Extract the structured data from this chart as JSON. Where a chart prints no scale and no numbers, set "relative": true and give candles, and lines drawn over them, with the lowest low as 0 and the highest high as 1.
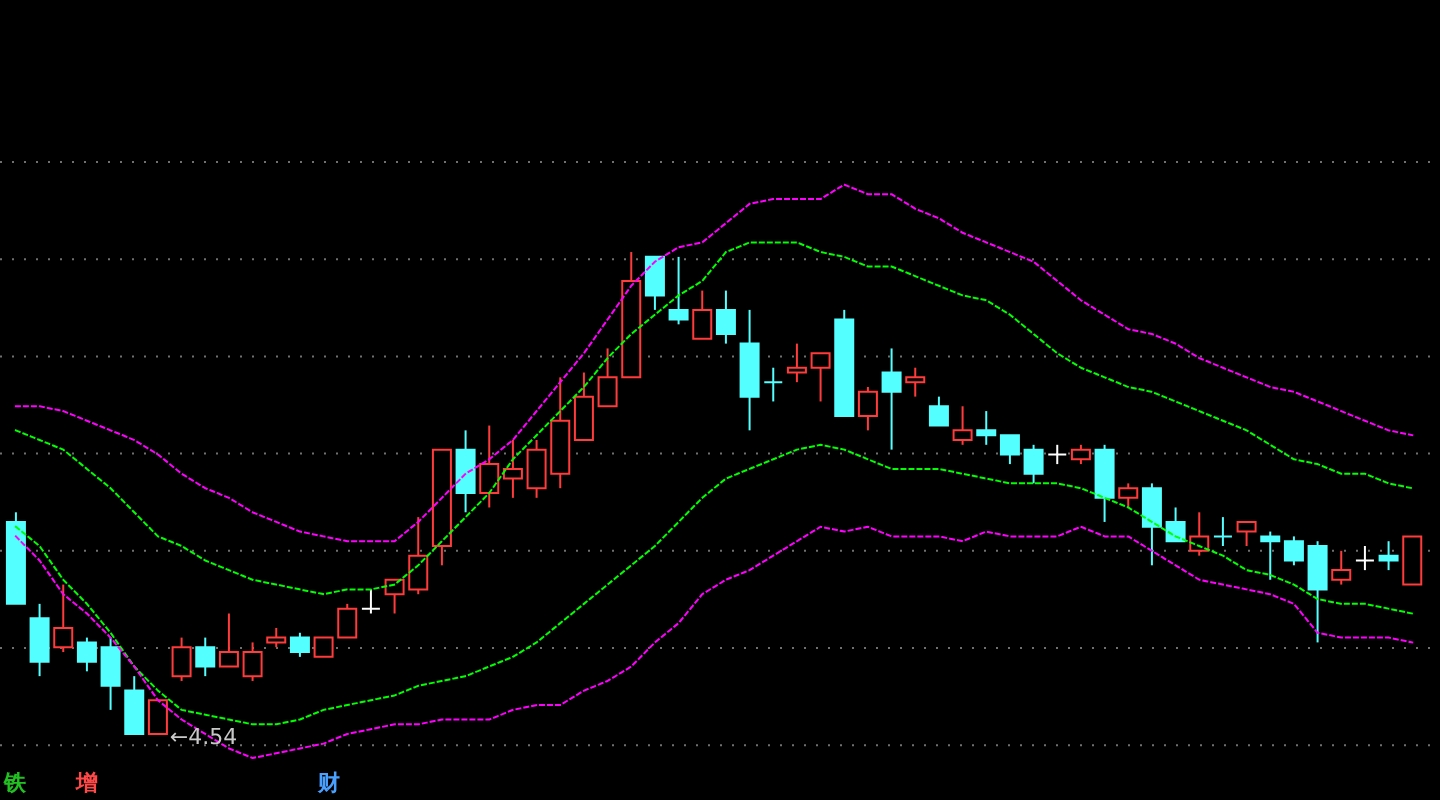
{
  "chart_data": {
    "type": "candlestick",
    "relative": true,
    "grid": true,
    "categories": [
      null,
      null,
      null,
      null,
      null,
      null,
      null,
      null,
      null,
      null,
      null,
      null,
      null,
      null,
      null,
      null,
      null,
      null,
      null,
      null,
      null,
      null,
      null,
      null,
      null,
      null,
      null,
      null,
      null,
      null,
      null,
      null,
      null,
      null,
      null,
      null,
      null,
      null,
      null,
      null,
      null,
      null,
      null,
      null,
      null,
      null,
      null,
      null,
      null,
      null,
      null,
      null,
      null,
      null,
      null,
      null,
      null,
      null,
      null,
      null
    ],
    "ohlc": [
      [
        0.44,
        0.46,
        0.27,
        0.27
      ],
      [
        0.24,
        0.27,
        0.12,
        0.15
      ],
      [
        0.18,
        0.31,
        0.17,
        0.22
      ],
      [
        0.19,
        0.2,
        0.13,
        0.15
      ],
      [
        0.18,
        0.2,
        0.05,
        0.1
      ],
      [
        0.09,
        0.12,
        0,
        0.0
      ],
      [
        0.0,
        0.07,
        0,
        0.07
      ],
      [
        0.12,
        0.2,
        0.11,
        0.18
      ],
      [
        0.18,
        0.2,
        0.12,
        0.14
      ],
      [
        0.14,
        0.25,
        0.14,
        0.17
      ],
      [
        0.12,
        0.19,
        0.11,
        0.17
      ],
      [
        0.19,
        0.22,
        0.18,
        0.2
      ],
      [
        0.2,
        0.21,
        0.16,
        0.17
      ],
      [
        0.16,
        0.2,
        0.16,
        0.2
      ],
      [
        0.2,
        0.27,
        0.2,
        0.26
      ],
      [
        0.26,
        0.3,
        0.25,
        0.26
      ],
      [
        0.29,
        0.32,
        0.25,
        0.32
      ],
      [
        0.3,
        0.45,
        0.29,
        0.37
      ],
      [
        0.39,
        0.59,
        0.35,
        0.59
      ],
      [
        0.59,
        0.63,
        0.46,
        0.5
      ],
      [
        0.5,
        0.64,
        0.47,
        0.56
      ],
      [
        0.53,
        0.61,
        0.49,
        0.55
      ],
      [
        0.51,
        0.61,
        0.49,
        0.59
      ],
      [
        0.54,
        0.74,
        0.51,
        0.65
      ],
      [
        0.61,
        0.75,
        0.61,
        0.7
      ],
      [
        0.68,
        0.8,
        0.68,
        0.74
      ],
      [
        0.74,
        1,
        0.74,
        0.94
      ],
      [
        0.99,
        0.99,
        0.88,
        0.91
      ],
      [
        0.88,
        0.99,
        0.85,
        0.86
      ],
      [
        0.82,
        0.92,
        0.82,
        0.88
      ],
      [
        0.88,
        0.92,
        0.81,
        0.83
      ],
      [
        0.81,
        0.88,
        0.63,
        0.7
      ],
      [
        0.73,
        0.76,
        0.69,
        0.73
      ],
      [
        0.75,
        0.81,
        0.73,
        0.76
      ],
      [
        0.76,
        0.79,
        0.69,
        0.79
      ],
      [
        0.86,
        0.88,
        0.66,
        0.66
      ],
      [
        0.66,
        0.72,
        0.63,
        0.71
      ],
      [
        0.75,
        0.8,
        0.59,
        0.71
      ],
      [
        0.73,
        0.76,
        0.7,
        0.74
      ],
      [
        0.68,
        0.7,
        0.64,
        0.64
      ],
      [
        0.61,
        0.68,
        0.6,
        0.63
      ],
      [
        0.63,
        0.67,
        0.6,
        0.62
      ],
      [
        0.62,
        0.62,
        0.56,
        0.58
      ],
      [
        0.59,
        0.6,
        0.52,
        0.54
      ],
      [
        0.58,
        0.6,
        0.56,
        0.58
      ],
      [
        0.57,
        0.6,
        0.56,
        0.59
      ],
      [
        0.59,
        0.6,
        0.44,
        0.49
      ],
      [
        0.49,
        0.52,
        0.47,
        0.51
      ],
      [
        0.51,
        0.52,
        0.35,
        0.43
      ],
      [
        0.44,
        0.47,
        0.4,
        0.4
      ],
      [
        0.38,
        0.46,
        0.37,
        0.41
      ],
      [
        0.41,
        0.45,
        0.39,
        0.41
      ],
      [
        0.42,
        0.44,
        0.39,
        0.44
      ],
      [
        0.41,
        0.42,
        0.32,
        0.4
      ],
      [
        0.4,
        0.41,
        0.35,
        0.36
      ],
      [
        0.39,
        0.4,
        0.19,
        0.3
      ],
      [
        0.32,
        0.38,
        0.31,
        0.34
      ],
      [
        0.36,
        0.39,
        0.34,
        0.36
      ],
      [
        0.37,
        0.4,
        0.34,
        0.36
      ],
      [
        0.31,
        0.41,
        0.31,
        0.41
      ]
    ],
    "colors": [
      "#54ffff",
      "#54ffff",
      "#ff3b3b",
      "#54ffff",
      "#54ffff",
      "#54ffff",
      "#ff3b3b",
      "#ff3b3b",
      "#54ffff",
      "#ff3b3b",
      "#ff3b3b",
      "#ff3b3b",
      "#54ffff",
      "#ff3b3b",
      "#ff3b3b",
      "#ffffff",
      "#ff3b3b",
      "#ff3b3b",
      "#ff3b3b",
      "#54ffff",
      "#ff3b3b",
      "#ff3b3b",
      "#ff3b3b",
      "#ff3b3b",
      "#ff3b3b",
      "#ff3b3b",
      "#ff3b3b",
      "#54ffff",
      "#54ffff",
      "#ff3b3b",
      "#54ffff",
      "#54ffff",
      "#54ffff",
      "#ff3b3b",
      "#ff3b3b",
      "#54ffff",
      "#ff3b3b",
      "#54ffff",
      "#ff3b3b",
      "#54ffff",
      "#ff3b3b",
      "#54ffff",
      "#54ffff",
      "#54ffff",
      "#ffffff",
      "#ff3b3b",
      "#54ffff",
      "#ff3b3b",
      "#54ffff",
      "#54ffff",
      "#ff3b3b",
      "#54ffff",
      "#ff3b3b",
      "#54ffff",
      "#54ffff",
      "#54ffff",
      "#ff3b3b",
      "#ffffff",
      "#54ffff",
      "#ff3b3b"
    ],
    "series": [
      {
        "type": "line",
        "color": "#ff00ff",
        "line_style": "dashed",
        "values": [
          0.68,
          0.68,
          0.67,
          0.65,
          0.63,
          0.61,
          0.58,
          0.54,
          0.51,
          0.49,
          0.46,
          0.44,
          0.42,
          0.41,
          0.4,
          0.4,
          0.4,
          0.44,
          0.49,
          0.54,
          0.57,
          0.61,
          0.67,
          0.73,
          0.79,
          0.86,
          0.93,
          0.98,
          1.01,
          1.02,
          1.06,
          1.1,
          1.11,
          1.11,
          1.11,
          1.14,
          1.12,
          1.12,
          1.09,
          1.07,
          1.04,
          1.02,
          1.0,
          0.98,
          0.94,
          0.9,
          0.87,
          0.84,
          0.83,
          0.81,
          0.78,
          0.76,
          0.74,
          0.72,
          0.71,
          0.69,
          0.67,
          0.65,
          0.63,
          0.62
        ]
      },
      {
        "type": "line",
        "color": "#00ff00",
        "line_style": "dashed",
        "values": [
          0.63,
          0.61,
          0.59,
          0.55,
          0.51,
          0.46,
          0.41,
          0.39,
          0.36,
          0.34,
          0.32,
          0.31,
          0.3,
          0.29,
          0.3,
          0.3,
          0.31,
          0.35,
          0.4,
          0.45,
          0.5,
          0.57,
          0.62,
          0.67,
          0.72,
          0.78,
          0.83,
          0.87,
          0.91,
          0.94,
          1.0,
          1.02,
          1.02,
          1.02,
          1.0,
          0.99,
          0.97,
          0.97,
          0.95,
          0.93,
          0.91,
          0.9,
          0.87,
          0.83,
          0.79,
          0.76,
          0.74,
          0.72,
          0.71,
          0.69,
          0.67,
          0.65,
          0.63,
          0.6,
          0.57,
          0.56,
          0.54,
          0.54,
          0.52,
          0.51
        ]
      },
      {
        "type": "line",
        "color": "#00ff00",
        "line_style": "dashed",
        "values": [
          0.43,
          0.39,
          0.32,
          0.27,
          0.21,
          0.14,
          0.09,
          0.05,
          0.04,
          0.03,
          0.02,
          0.02,
          0.03,
          0.05,
          0.06,
          0.07,
          0.08,
          0.1,
          0.11,
          0.12,
          0.14,
          0.16,
          0.19,
          0.23,
          0.27,
          0.31,
          0.35,
          0.39,
          0.44,
          0.49,
          0.53,
          0.55,
          0.57,
          0.59,
          0.6,
          0.59,
          0.57,
          0.55,
          0.55,
          0.55,
          0.54,
          0.53,
          0.52,
          0.52,
          0.52,
          0.51,
          0.49,
          0.47,
          0.44,
          0.41,
          0.39,
          0.37,
          0.34,
          0.33,
          0.31,
          0.28,
          0.27,
          0.27,
          0.26,
          0.25
        ]
      },
      {
        "type": "line",
        "color": "#ff00ff",
        "line_style": "dashed",
        "values": [
          0.41,
          0.36,
          0.29,
          0.25,
          0.2,
          0.14,
          0.07,
          0.03,
          0.0,
          -0.03,
          -0.05,
          -0.04,
          -0.03,
          -0.02,
          0.0,
          0.01,
          0.02,
          0.02,
          0.03,
          0.03,
          0.03,
          0.05,
          0.06,
          0.06,
          0.09,
          0.11,
          0.14,
          0.19,
          0.23,
          0.29,
          0.32,
          0.34,
          0.37,
          0.4,
          0.43,
          0.42,
          0.43,
          0.41,
          0.41,
          0.41,
          0.4,
          0.42,
          0.41,
          0.41,
          0.41,
          0.43,
          0.41,
          0.41,
          0.38,
          0.35,
          0.32,
          0.31,
          0.3,
          0.29,
          0.27,
          0.21,
          0.2,
          0.2,
          0.2,
          0.19
        ]
      }
    ],
    "annotations": [
      {
        "text": "←4.54",
        "y": 0
      },
      "铁",
      "增",
      "财"
    ]
  }
}
